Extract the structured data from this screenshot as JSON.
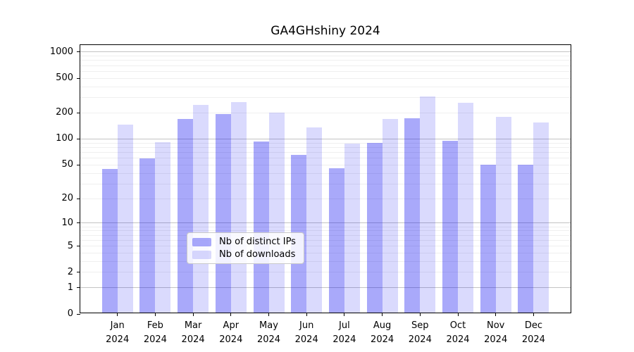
{
  "title": "GA4GHshiny 2024",
  "chart_data": {
    "type": "bar",
    "title": "GA4GHshiny 2024",
    "categories": [
      "Jan 2024",
      "Feb 2024",
      "Mar 2024",
      "Apr 2024",
      "May 2024",
      "Jun 2024",
      "Jul 2024",
      "Aug 2024",
      "Sep 2024",
      "Oct 2024",
      "Nov 2024",
      "Dec 2024"
    ],
    "x_tick_labels": [
      {
        "line1": "Jan",
        "line2": "2024"
      },
      {
        "line1": "Feb",
        "line2": "2024"
      },
      {
        "line1": "Mar",
        "line2": "2024"
      },
      {
        "line1": "Apr",
        "line2": "2024"
      },
      {
        "line1": "May",
        "line2": "2024"
      },
      {
        "line1": "Jun",
        "line2": "2024"
      },
      {
        "line1": "Jul",
        "line2": "2024"
      },
      {
        "line1": "Aug",
        "line2": "2024"
      },
      {
        "line1": "Sep",
        "line2": "2024"
      },
      {
        "line1": "Oct",
        "line2": "2024"
      },
      {
        "line1": "Nov",
        "line2": "2024"
      },
      {
        "line1": "Dec",
        "line2": "2024"
      }
    ],
    "series": [
      {
        "name": "Nb of distinct IPs",
        "color": "rgba(10,10,240,0.35)",
        "values": [
          43,
          57,
          163,
          186,
          90,
          63,
          44,
          87,
          168,
          92,
          48,
          48
        ]
      },
      {
        "name": "Nb of downloads",
        "color": "rgba(10,10,240,0.15)",
        "values": [
          142,
          89,
          238,
          257,
          193,
          132,
          85,
          164,
          298,
          250,
          172,
          149
        ]
      }
    ],
    "xlabel": "",
    "ylabel": "",
    "yscale": "log1p",
    "ylim": [
      0,
      1200
    ],
    "yticks": [
      0,
      1,
      2,
      5,
      10,
      20,
      50,
      100,
      200,
      500,
      1000
    ],
    "grid": {
      "major_at": [
        1,
        10,
        100,
        1000
      ],
      "minor_subs": [
        2,
        3,
        4,
        5,
        6,
        7,
        8,
        9
      ],
      "minor_decades": [
        1,
        10,
        100
      ],
      "major_color": "#c3c3c3",
      "minor_color": "#efefef"
    },
    "legend": {
      "position": "lower center",
      "items": [
        {
          "label": "Nb of distinct IPs",
          "color": "rgba(10,10,240,0.35)"
        },
        {
          "label": "Nb of downloads",
          "color": "rgba(10,10,240,0.15)"
        }
      ]
    }
  }
}
